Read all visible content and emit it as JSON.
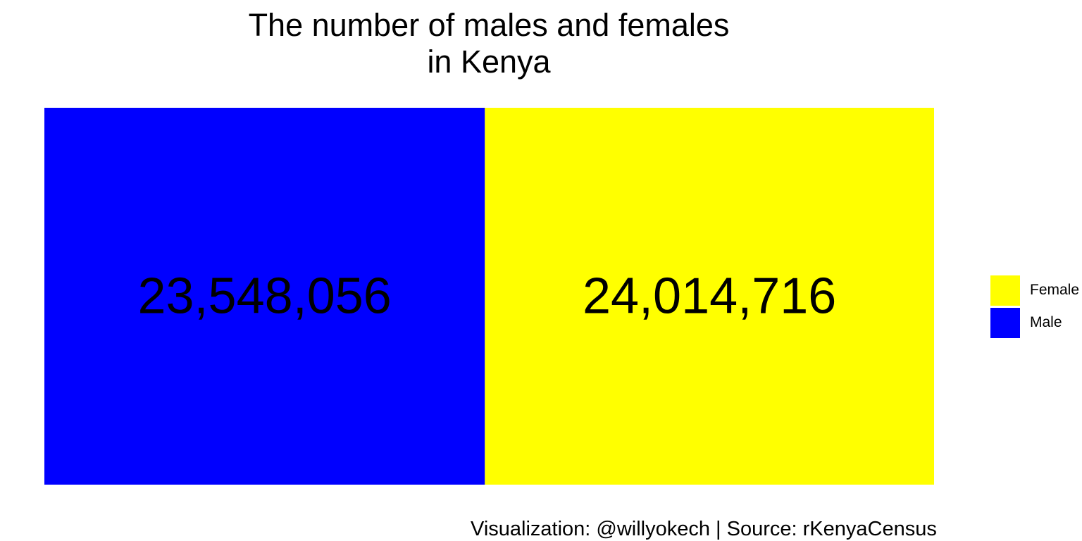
{
  "chart_data": {
    "type": "treemap",
    "title_lines": [
      "The number of males and females",
      "in Kenya"
    ],
    "caption": "Visualization: @willyokech | Source: rKenyaCensus",
    "tiles": [
      {
        "name": "Male",
        "value": 23548056,
        "label": "23,548,056",
        "color": "#0000FF"
      },
      {
        "name": "Female",
        "value": 24014716,
        "label": "24,014,716",
        "color": "#FFFF00"
      }
    ],
    "legend": {
      "placement": "right",
      "entries": [
        {
          "label": "Female",
          "color": "#FFFF00"
        },
        {
          "label": "Male",
          "color": "#0000FF"
        }
      ]
    }
  }
}
